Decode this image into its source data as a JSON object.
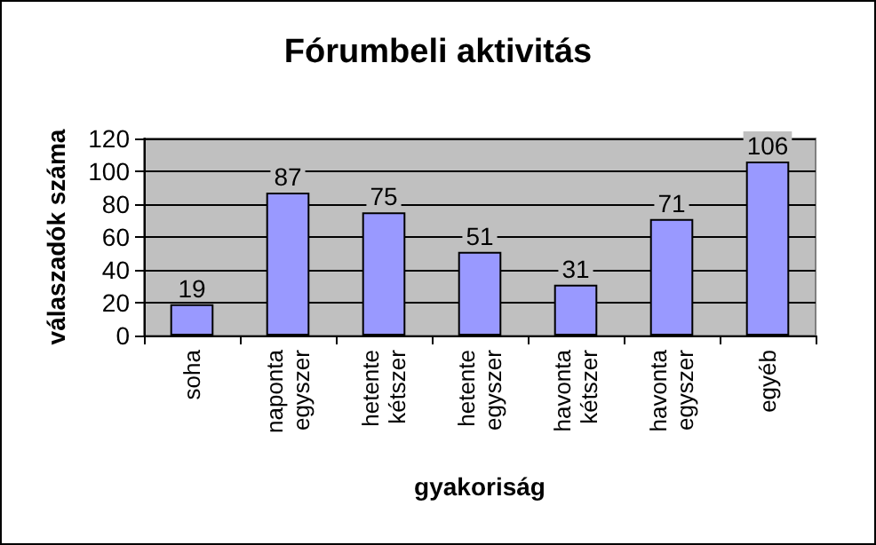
{
  "chart_data": {
    "type": "bar",
    "title": "Fórumbeli aktivitás",
    "xlabel": "gyakoriság",
    "ylabel": "válaszadók száma",
    "categories": [
      "soha",
      "naponta egyszer",
      "hetente kétszer",
      "hetente egyszer",
      "havonta kétszer",
      "havonta egyszer",
      "egyéb"
    ],
    "values": [
      19,
      87,
      75,
      51,
      31,
      71,
      106
    ],
    "color": "#9999ff",
    "ylim": [
      0,
      120
    ],
    "yticks": [
      0,
      20,
      40,
      60,
      80,
      100,
      120
    ],
    "grid": "y",
    "data_labels": true
  }
}
